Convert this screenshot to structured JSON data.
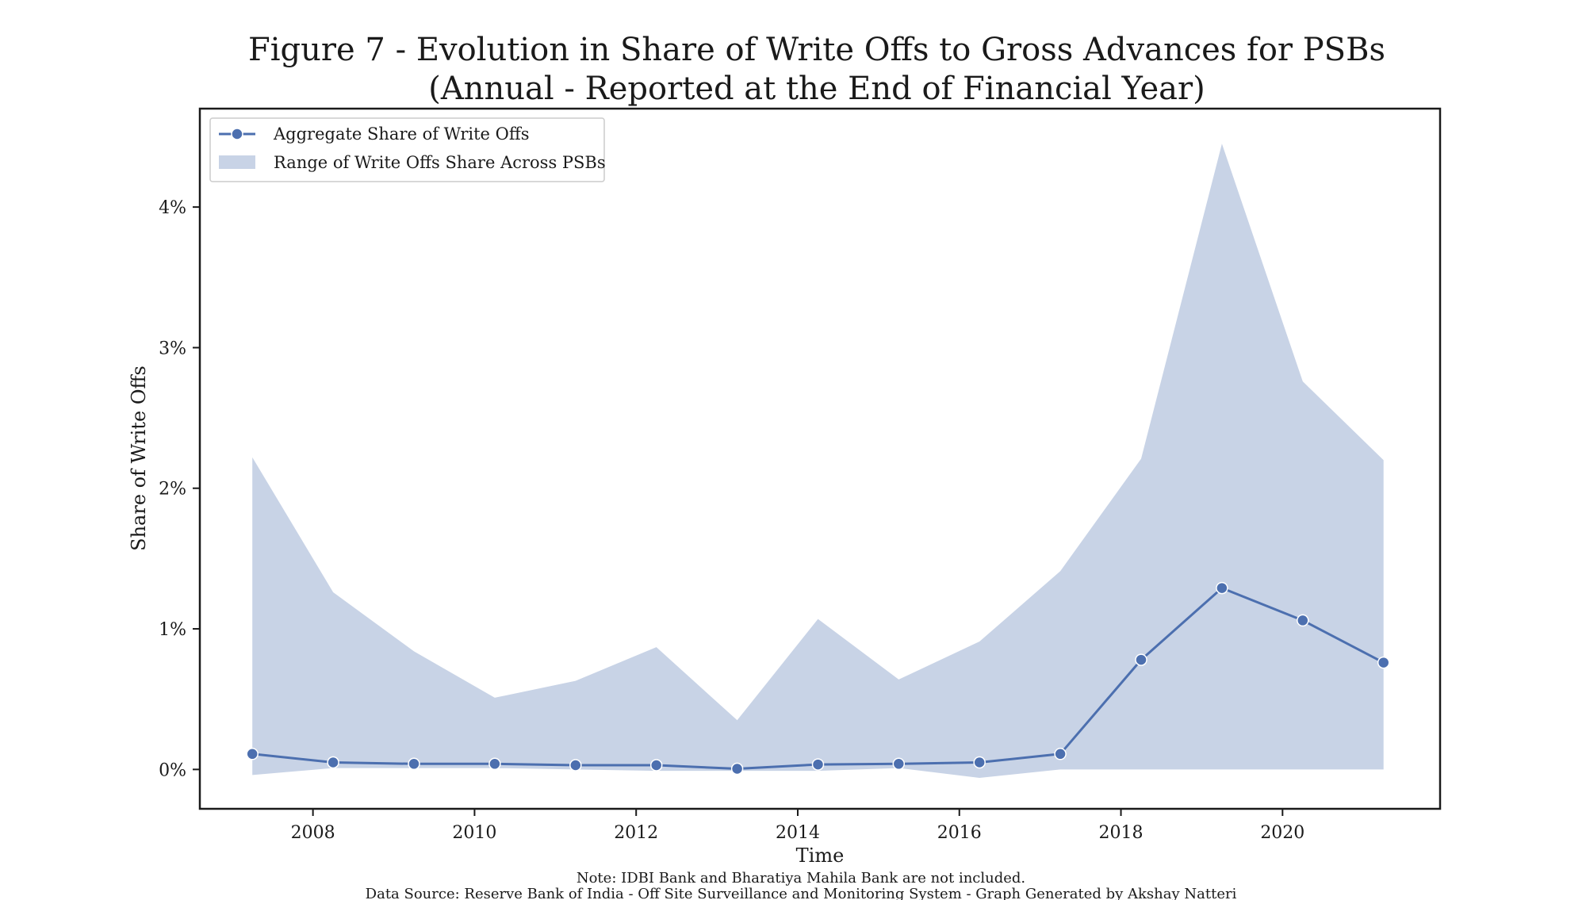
{
  "chart_data": {
    "type": "line",
    "title": "Figure 7 - Evolution in Share of Write Offs to Gross Advances for PSBs",
    "subtitle": "(Annual - Reported at the End of Financial Year)",
    "xlabel": "Time",
    "ylabel": "Share of Write Offs",
    "x_ticks": [
      2008,
      2010,
      2012,
      2014,
      2016,
      2018,
      2020
    ],
    "y_ticks": [
      0,
      1,
      2,
      3,
      4
    ],
    "y_tick_labels": [
      "0%",
      "1%",
      "2%",
      "3%",
      "4%"
    ],
    "xlim": [
      2006.6,
      2021.95
    ],
    "ylim": [
      -0.28,
      4.7
    ],
    "x": [
      2007.25,
      2008.25,
      2009.25,
      2010.25,
      2011.25,
      2012.25,
      2013.25,
      2014.25,
      2015.25,
      2016.25,
      2017.25,
      2018.25,
      2019.25,
      2020.25,
      2021.25
    ],
    "series": [
      {
        "name": "Aggregate Share of Write Offs",
        "kind": "line",
        "color": "#4c6faf",
        "values": [
          0.11,
          0.05,
          0.04,
          0.04,
          0.03,
          0.03,
          0.005,
          0.035,
          0.04,
          0.05,
          0.11,
          0.78,
          1.29,
          1.06,
          0.76
        ]
      },
      {
        "name": "Range of Write Offs Share Across PSBs",
        "kind": "band",
        "color": "#c8d3e6",
        "lower": [
          -0.04,
          0.01,
          0.01,
          0.01,
          0.0,
          -0.01,
          -0.01,
          -0.01,
          0.01,
          -0.06,
          0.0,
          0.0,
          0.0,
          0.0,
          0.0
        ],
        "upper": [
          2.22,
          1.26,
          0.84,
          0.51,
          0.63,
          0.87,
          0.35,
          1.07,
          0.64,
          0.91,
          1.41,
          2.21,
          4.45,
          2.76,
          2.2
        ]
      }
    ],
    "legend_position": "top-left",
    "grid": false
  },
  "footer": {
    "note": "Note: IDBI Bank and Bharatiya Mahila Bank are not included.",
    "source": "Data Source: Reserve Bank of India - Off Site Surveillance and Monitoring System - Graph Generated by Akshay Natteri"
  }
}
